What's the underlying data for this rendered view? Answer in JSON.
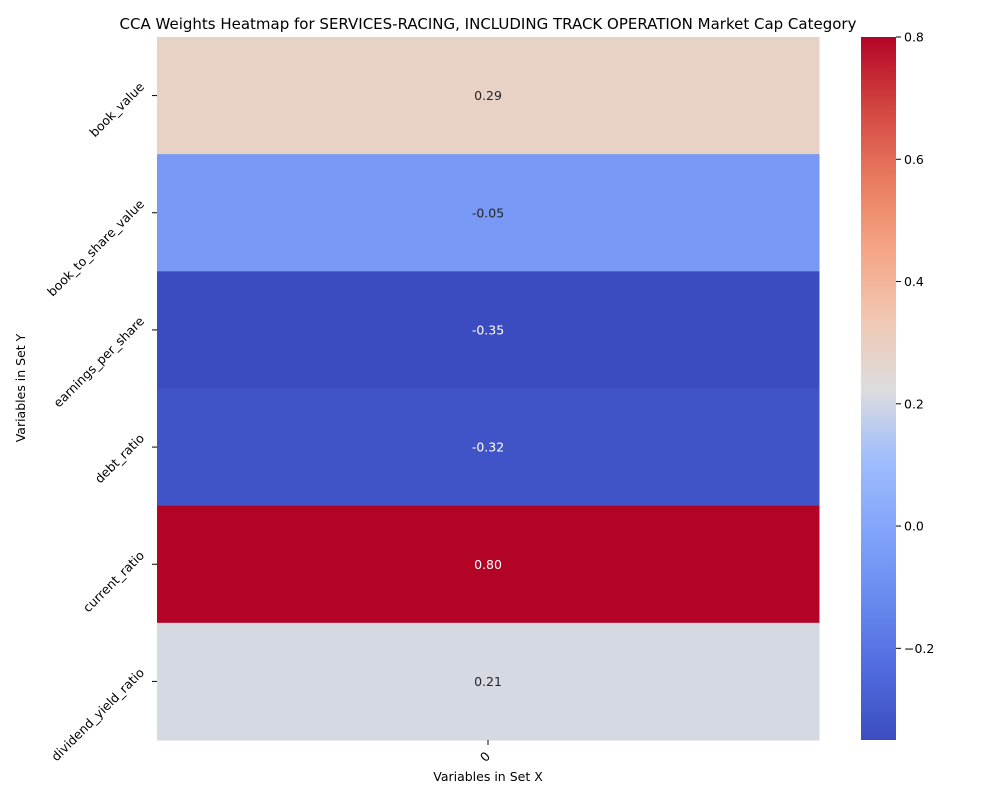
{
  "chart_data": {
    "type": "heatmap",
    "title": "CCA Weights Heatmap for SERVICES-RACING, INCLUDING TRACK OPERATION Market Cap Category",
    "xlabel": "Variables in Set X",
    "ylabel": "Variables in Set Y",
    "x_categories": [
      "0"
    ],
    "y_categories": [
      "book_value",
      "book_to_share_value",
      "earnings_per_share",
      "debt_ratio",
      "current_ratio",
      "dividend_yield_ratio"
    ],
    "values": [
      [
        0.29
      ],
      [
        -0.05
      ],
      [
        -0.35
      ],
      [
        -0.32
      ],
      [
        0.8
      ],
      [
        0.21
      ]
    ],
    "value_labels": [
      "0.29",
      "-0.05",
      "-0.35",
      "-0.32",
      "0.80",
      "0.21"
    ],
    "colormap": "coolwarm",
    "vmin": -0.35,
    "vmax": 0.8,
    "colorbar_ticks": [
      0.8,
      0.6,
      0.4,
      0.2,
      0.0,
      -0.2
    ],
    "colorbar_tick_labels": [
      "0.8",
      "0.6",
      "0.4",
      "0.2",
      "0.0",
      "−0.2"
    ],
    "colors": {
      "low": "#3b4cc0",
      "mid": "#dddddd",
      "high": "#b40426"
    }
  }
}
